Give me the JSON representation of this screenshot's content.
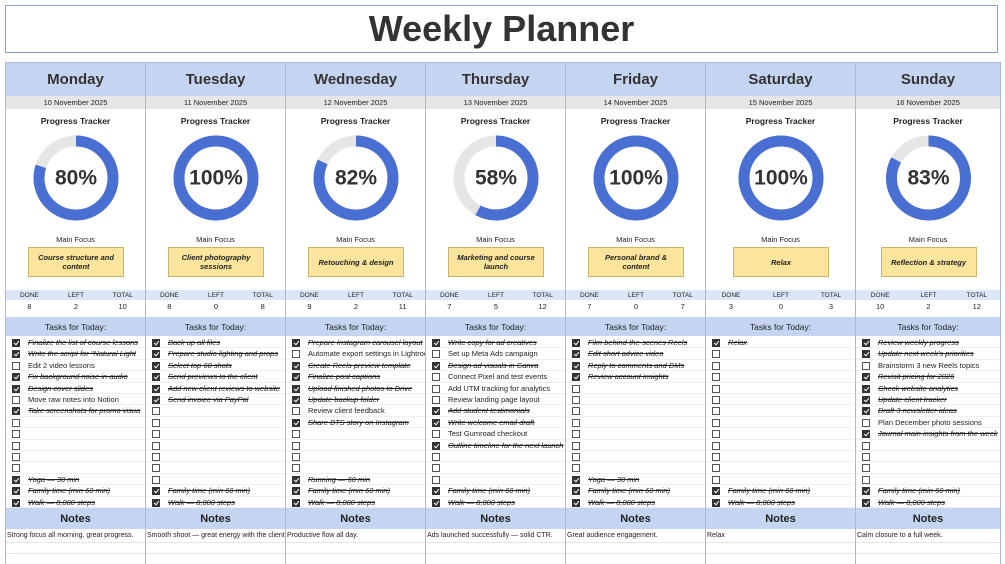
{
  "title": "Weekly Planner",
  "labels": {
    "progress": "Progress Tracker",
    "focus": "Main Focus",
    "done": "DONE",
    "left": "LEFT",
    "total": "TOTAL",
    "tasks": "Tasks for Today:",
    "notes": "Notes"
  },
  "days": [
    {
      "name": "Monday",
      "date": "10 November 2025",
      "progress": 80,
      "progress_label": "80%",
      "focus": "Course structure and content",
      "done": 8,
      "left": 2,
      "total": 10,
      "tasks": [
        {
          "text": "Finalize the list of course lessons",
          "done": true
        },
        {
          "text": "Write the script for “Natural Light",
          "done": true
        },
        {
          "text": "Edit 2 video lessons",
          "done": false
        },
        {
          "text": "Fix background noise in audio",
          "done": true
        },
        {
          "text": "Design cover slides",
          "done": true
        },
        {
          "text": "Move raw notes into Notion",
          "done": false
        },
        {
          "text": "Take screenshots for promo visua",
          "done": true
        }
      ],
      "habits": [
        {
          "text": "Yoga — 30 min",
          "done": true
        },
        {
          "text": "Family time (min 60 min)",
          "done": true
        },
        {
          "text": "Walk — 8,000 steps",
          "done": true
        }
      ],
      "notes": "Strong focus all morning, great progress."
    },
    {
      "name": "Tuesday",
      "date": "11 November 2025",
      "progress": 100,
      "progress_label": "100%",
      "focus": "Client photography sessions",
      "done": 8,
      "left": 0,
      "total": 8,
      "tasks": [
        {
          "text": "Back up all files",
          "done": true
        },
        {
          "text": "Prepare studio lighting and props",
          "done": true
        },
        {
          "text": "Select top 60 shots",
          "done": true
        },
        {
          "text": "Send previews to the client",
          "done": true
        },
        {
          "text": "Add new client reviews to website",
          "done": true
        },
        {
          "text": "Send invoice via PayPal",
          "done": true
        }
      ],
      "habits": [
        {
          "done": false
        },
        {
          "text": "Family time (min 60 min)",
          "done": true
        },
        {
          "text": "Walk — 8,000 steps",
          "done": true
        }
      ],
      "notes": "Smooth shoot — great energy with the client"
    },
    {
      "name": "Wednesday",
      "date": "12 November 2025",
      "progress": 82,
      "progress_label": "82%",
      "focus": "Retouching & design",
      "done": 9,
      "left": 2,
      "total": 11,
      "tasks": [
        {
          "text": "Prepare Instagram carousel layout",
          "done": true
        },
        {
          "text": "Automate export settings in Lightroom",
          "done": false
        },
        {
          "text": "Create Reels preview template",
          "done": true
        },
        {
          "text": "Finalize post captions",
          "done": true
        },
        {
          "text": "Upload finished photos to Drive",
          "done": true
        },
        {
          "text": "Update backup folder",
          "done": true
        },
        {
          "text": "Review client feedback",
          "done": false
        },
        {
          "text": "Share BTS story on Instagram",
          "done": true
        }
      ],
      "habits": [
        {
          "text": "Running — 60 min",
          "done": true
        },
        {
          "text": "Family time (min 60 min)",
          "done": true
        },
        {
          "text": "Walk — 8,000 steps",
          "done": true
        }
      ],
      "notes": "Productive flow all day."
    },
    {
      "name": "Thursday",
      "date": "13 November 2025",
      "progress": 58,
      "progress_label": "58%",
      "focus": "Marketing and course launch",
      "done": 7,
      "left": 5,
      "total": 12,
      "tasks": [
        {
          "text": "Write copy for ad creatives",
          "done": true
        },
        {
          "text": "Set up Meta Ads campaign",
          "done": false
        },
        {
          "text": "Design ad visuals in Canva",
          "done": true
        },
        {
          "text": "Connect Pixel and test events",
          "done": false
        },
        {
          "text": "Add UTM tracking for analytics",
          "done": false
        },
        {
          "text": "Review landing page layout",
          "done": false
        },
        {
          "text": "Add student testimonials",
          "done": true
        },
        {
          "text": "Write welcome email draft",
          "done": true
        },
        {
          "text": "Test Gumroad checkout",
          "done": false
        },
        {
          "text": "Outline timeline for the next launch",
          "done": true
        }
      ],
      "habits": [
        {
          "done": false
        },
        {
          "text": "Family time (min 60 min)",
          "done": true
        },
        {
          "text": "Walk — 8,000 steps",
          "done": true
        }
      ],
      "notes": "Ads launched successfully — solid CTR."
    },
    {
      "name": "Friday",
      "date": "14 November 2025",
      "progress": 100,
      "progress_label": "100%",
      "focus": "Personal brand & content",
      "done": 7,
      "left": 0,
      "total": 7,
      "tasks": [
        {
          "text": "Film behind-the-scenes Reels",
          "done": true
        },
        {
          "text": "Edit short advice video",
          "done": true
        },
        {
          "text": "Reply to comments and DMs",
          "done": true
        },
        {
          "text": "Review account insights",
          "done": true
        }
      ],
      "habits": [
        {
          "text": "Yoga — 30 min",
          "done": true
        },
        {
          "text": "Family time (min 60 min)",
          "done": true
        },
        {
          "text": "Walk — 8,000 steps",
          "done": true
        }
      ],
      "notes": "Great audience engagement."
    },
    {
      "name": "Saturday",
      "date": "15 November 2025",
      "progress": 100,
      "progress_label": "100%",
      "focus": "Relax",
      "done": 3,
      "left": 0,
      "total": 3,
      "tasks": [
        {
          "text": "Relax",
          "done": true
        }
      ],
      "habits": [
        {
          "done": false
        },
        {
          "text": "Family time (min 60 min)",
          "done": true
        },
        {
          "text": "Walk — 8,000 steps",
          "done": true
        }
      ],
      "notes": "Relax"
    },
    {
      "name": "Sunday",
      "date": "16 November 2025",
      "progress": 83,
      "progress_label": "83%",
      "focus": "Reflection & strategy",
      "done": 10,
      "left": 2,
      "total": 12,
      "tasks": [
        {
          "text": "Review weekly progress",
          "done": true
        },
        {
          "text": "Update next week's priorities",
          "done": true
        },
        {
          "text": "Brainstorm 3 new Reels topics",
          "done": false
        },
        {
          "text": "Revisit pricing for 2026",
          "done": true
        },
        {
          "text": "Check website analytics",
          "done": true
        },
        {
          "text": "Update client tracker",
          "done": true
        },
        {
          "text": "Draft 3 newsletter ideas",
          "done": true
        },
        {
          "text": "Plan December photo sessions",
          "done": false
        },
        {
          "text": "Journal main insights from the week",
          "done": true
        }
      ],
      "habits": [
        {
          "done": false
        },
        {
          "text": "Family time (min 60 min)",
          "done": true
        },
        {
          "text": "Walk — 8,000 steps",
          "done": true
        }
      ],
      "notes": "Calm closure to a full week."
    }
  ]
}
